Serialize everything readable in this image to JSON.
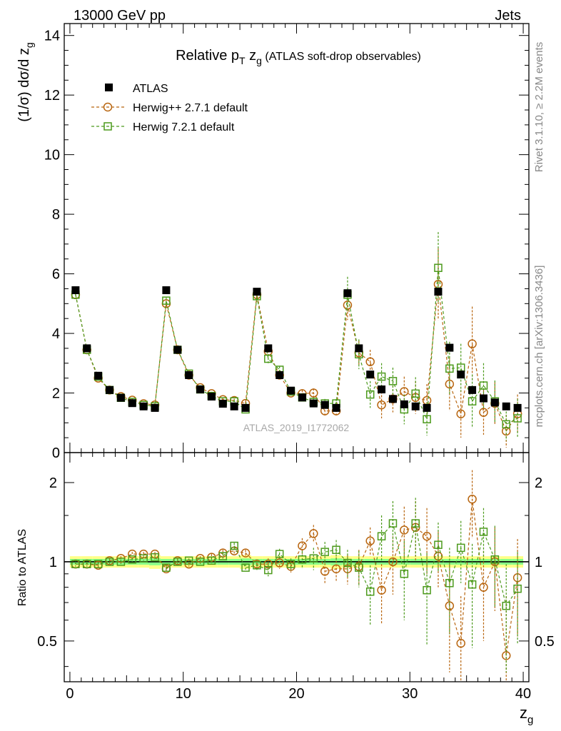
{
  "header": {
    "left": "13000 GeV pp",
    "right": "Jets"
  },
  "side_text": {
    "rivet": "Rivet 3.1.10, ≥ 2.2M events",
    "mcplots": "mcplots.cern.ch [arXiv:1306.3436]"
  },
  "watermark": "ATLAS_2019_I1772062",
  "colors": {
    "atlas": "#000000",
    "herwigpp": "#b8650f",
    "herwig7": "#4c9a1c",
    "band_outer": "#ffff88",
    "band_inner": "#88ff88"
  },
  "chart_data": [
    {
      "type": "scatter",
      "title": "Relative p_T z_g (ATLAS soft-drop observables)",
      "title_parts": {
        "main": "Relative p",
        "sub_t": "T",
        "z": " z",
        "sub_g": "g",
        "rest": " (ATLAS soft-drop observables)"
      },
      "ylabel": "(1/σ) dσ/d z_g",
      "ylabel_parts": {
        "main": "(1/σ) dσ/d z",
        "sub": "g"
      },
      "xlabel": "",
      "xlim": [
        -0.5,
        40.5
      ],
      "ylim": [
        0,
        14.4
      ],
      "yticks": [
        "0",
        "2",
        "4",
        "6",
        "8",
        "10",
        "12",
        "14"
      ],
      "yticks_values": [
        0,
        2,
        4,
        6,
        8,
        10,
        12,
        14
      ],
      "legend": [
        "ATLAS",
        "Herwig++ 2.7.1 default",
        "Herwig 7.2.1 default"
      ],
      "x": [
        0.5,
        1.5,
        2.5,
        3.5,
        4.5,
        5.5,
        6.5,
        7.5,
        8.5,
        9.5,
        10.5,
        11.5,
        12.5,
        13.5,
        14.5,
        15.5,
        16.5,
        17.5,
        18.5,
        19.5,
        20.5,
        21.5,
        22.5,
        23.5,
        24.5,
        25.5,
        26.5,
        27.5,
        28.5,
        29.5,
        30.5,
        31.5,
        32.5,
        33.5,
        34.5,
        35.5,
        36.5,
        37.5,
        38.5,
        39.5
      ],
      "series": [
        {
          "name": "ATLAS",
          "values": [
            5.45,
            3.5,
            2.58,
            2.1,
            1.84,
            1.66,
            1.55,
            1.5,
            5.45,
            3.45,
            2.6,
            2.12,
            1.88,
            1.64,
            1.55,
            1.5,
            5.4,
            3.5,
            2.6,
            2.08,
            1.85,
            1.65,
            1.6,
            1.5,
            5.35,
            3.5,
            2.62,
            2.12,
            1.8,
            1.62,
            1.55,
            1.5,
            5.4,
            3.52,
            2.62,
            2.1,
            1.82,
            1.68,
            1.55,
            1.5
          ]
        },
        {
          "name": "Herwig++ 2.7.1 default",
          "values": [
            5.3,
            3.45,
            2.5,
            2.1,
            1.88,
            1.76,
            1.64,
            1.6,
            5.0,
            3.45,
            2.6,
            2.18,
            1.98,
            1.78,
            1.75,
            1.65,
            5.3,
            3.4,
            2.6,
            2.0,
            1.98,
            2.0,
            1.4,
            1.4,
            4.95,
            3.35,
            3.05,
            1.6,
            1.8,
            2.05,
            1.85,
            1.75,
            5.65,
            2.3,
            1.3,
            3.65,
            1.35,
            1.65,
            0.72,
            1.3
          ],
          "errors": [
            0.05,
            0.05,
            0.05,
            0.05,
            0.05,
            0.05,
            0.05,
            0.05,
            0.1,
            0.08,
            0.06,
            0.06,
            0.06,
            0.06,
            0.06,
            0.06,
            0.2,
            0.15,
            0.12,
            0.12,
            0.12,
            0.15,
            0.15,
            0.15,
            0.5,
            0.4,
            0.4,
            0.45,
            0.45,
            0.5,
            0.55,
            0.55,
            1.2,
            0.9,
            0.8,
            1.25,
            0.75,
            0.7,
            0.55,
            0.65
          ]
        },
        {
          "name": "Herwig 7.2.1 default",
          "values": [
            5.3,
            3.45,
            2.55,
            2.1,
            1.84,
            1.7,
            1.6,
            1.55,
            5.1,
            3.45,
            2.65,
            2.12,
            1.9,
            1.72,
            1.72,
            1.45,
            5.25,
            3.15,
            2.78,
            2.05,
            1.85,
            1.7,
            1.65,
            1.65,
            5.3,
            3.3,
            1.95,
            2.55,
            2.4,
            1.45,
            1.98,
            1.12,
            6.2,
            2.82,
            2.85,
            1.72,
            2.25,
            1.72,
            0.95,
            1.15
          ],
          "errors": [
            0.05,
            0.05,
            0.05,
            0.05,
            0.05,
            0.05,
            0.05,
            0.05,
            0.1,
            0.08,
            0.06,
            0.06,
            0.06,
            0.06,
            0.06,
            0.06,
            0.2,
            0.15,
            0.12,
            0.12,
            0.12,
            0.15,
            0.15,
            0.15,
            0.6,
            0.5,
            0.45,
            0.45,
            0.45,
            0.5,
            0.55,
            0.55,
            1.2,
            0.9,
            0.8,
            0.9,
            0.75,
            0.7,
            0.55,
            0.65
          ]
        }
      ]
    },
    {
      "type": "scatter",
      "title": "",
      "ylabel": "Ratio to ATLAS",
      "xlabel": "z_g",
      "xlabel_parts": {
        "main": "z",
        "sub": "g"
      },
      "xlim": [
        -0.5,
        40.5
      ],
      "ylim": [
        0.35,
        2.6
      ],
      "yscale": "log",
      "xticks": [
        "0",
        "10",
        "20",
        "30",
        "40"
      ],
      "xticks_values": [
        0,
        10,
        20,
        30,
        40
      ],
      "yticks": [
        "0.5",
        "1",
        "2"
      ],
      "yticks_values": [
        0.5,
        1,
        2
      ],
      "reference_line": 1,
      "band_outer": [
        0.05,
        0.05,
        0.05,
        0.05,
        0.05,
        0.05,
        0.05,
        0.06,
        0.05,
        0.05,
        0.05,
        0.05,
        0.05,
        0.05,
        0.05,
        0.06,
        0.05,
        0.05,
        0.05,
        0.05,
        0.05,
        0.05,
        0.05,
        0.06,
        0.05,
        0.05,
        0.05,
        0.05,
        0.05,
        0.05,
        0.05,
        0.05,
        0.05,
        0.05,
        0.05,
        0.05,
        0.05,
        0.05,
        0.05,
        0.05
      ],
      "band_inner": [
        0.025,
        0.025,
        0.025,
        0.025,
        0.025,
        0.025,
        0.025,
        0.03,
        0.025,
        0.025,
        0.025,
        0.025,
        0.025,
        0.025,
        0.025,
        0.03,
        0.025,
        0.025,
        0.025,
        0.025,
        0.025,
        0.025,
        0.025,
        0.03,
        0.025,
        0.025,
        0.025,
        0.025,
        0.025,
        0.025,
        0.025,
        0.025,
        0.025,
        0.025,
        0.025,
        0.025,
        0.025,
        0.025,
        0.025,
        0.025
      ],
      "x": [
        0.5,
        1.5,
        2.5,
        3.5,
        4.5,
        5.5,
        6.5,
        7.5,
        8.5,
        9.5,
        10.5,
        11.5,
        12.5,
        13.5,
        14.5,
        15.5,
        16.5,
        17.5,
        18.5,
        19.5,
        20.5,
        21.5,
        22.5,
        23.5,
        24.5,
        25.5,
        26.5,
        27.5,
        28.5,
        29.5,
        30.5,
        31.5,
        32.5,
        33.5,
        34.5,
        35.5,
        36.5,
        37.5,
        38.5,
        39.5
      ],
      "series": [
        {
          "name": "Herwig++ 2.7.1 default",
          "values": [
            0.98,
            0.98,
            0.97,
            1.01,
            1.03,
            1.07,
            1.07,
            1.07,
            0.94,
            1.01,
            0.98,
            1.03,
            1.04,
            1.08,
            1.1,
            1.08,
            0.98,
            0.98,
            0.99,
            0.96,
            1.15,
            1.28,
            0.92,
            0.94,
            0.94,
            0.96,
            1.2,
            0.78,
            1.0,
            1.32,
            1.35,
            1.25,
            1.05,
            0.68,
            0.49,
            1.73,
            0.8,
            1.0,
            0.44,
            0.87
          ],
          "errors": [
            0.02,
            0.02,
            0.02,
            0.02,
            0.02,
            0.02,
            0.02,
            0.02,
            0.03,
            0.02,
            0.02,
            0.02,
            0.03,
            0.03,
            0.03,
            0.03,
            0.04,
            0.05,
            0.05,
            0.05,
            0.08,
            0.1,
            0.1,
            0.1,
            0.12,
            0.15,
            0.15,
            0.2,
            0.25,
            0.3,
            0.35,
            0.35,
            0.25,
            0.3,
            0.25,
            0.5,
            0.3,
            0.35,
            0.3,
            0.35
          ]
        },
        {
          "name": "Herwig 7.2.1 default",
          "values": [
            0.98,
            0.98,
            0.98,
            1.0,
            1.0,
            1.02,
            1.03,
            1.04,
            0.95,
            1.0,
            1.01,
            1.0,
            1.01,
            1.05,
            1.15,
            0.95,
            0.97,
            0.93,
            1.07,
            0.98,
            1.02,
            1.03,
            1.09,
            1.11,
            0.99,
            0.95,
            0.77,
            1.25,
            1.4,
            0.9,
            1.4,
            0.78,
            1.16,
            0.83,
            1.13,
            0.82,
            1.3,
            1.02,
            0.68,
            0.79
          ],
          "errors": [
            0.02,
            0.02,
            0.02,
            0.02,
            0.02,
            0.02,
            0.02,
            0.02,
            0.03,
            0.02,
            0.02,
            0.02,
            0.03,
            0.03,
            0.03,
            0.03,
            0.04,
            0.05,
            0.05,
            0.05,
            0.08,
            0.1,
            0.1,
            0.1,
            0.12,
            0.15,
            0.2,
            0.25,
            0.3,
            0.3,
            0.35,
            0.3,
            0.25,
            0.3,
            0.3,
            0.35,
            0.3,
            0.35,
            0.3,
            0.3
          ]
        }
      ]
    }
  ]
}
